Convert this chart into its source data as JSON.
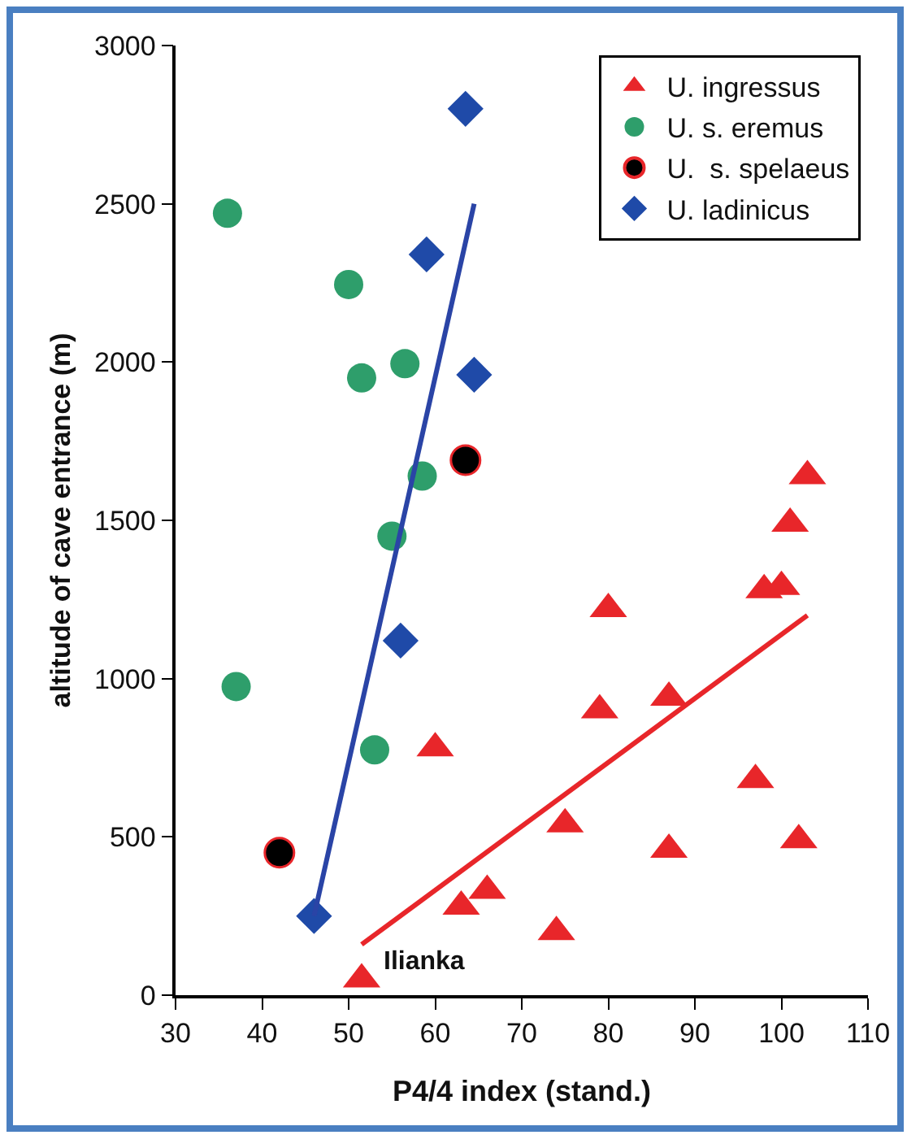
{
  "chart_data": {
    "type": "scatter",
    "xlabel": "P4/4 index (stand.)",
    "ylabel": "altitude of cave entrance (m)",
    "xlim": [
      30,
      110
    ],
    "xticks": [
      30,
      40,
      50,
      60,
      70,
      80,
      90,
      100,
      110
    ],
    "ylim": [
      0,
      3000
    ],
    "yticks": [
      0,
      500,
      1000,
      1500,
      2000,
      2500,
      3000
    ],
    "grid": false,
    "legend": "top right",
    "series": [
      {
        "name": "U. ingressus",
        "color": "#e8262a",
        "marker": "triangle",
        "x": [
          51.5,
          60,
          63,
          66,
          74,
          75,
          79,
          80,
          87,
          87,
          97,
          98,
          100,
          101,
          102,
          103
        ],
        "values": [
          50,
          780,
          280,
          330,
          200,
          540,
          900,
          1220,
          940,
          460,
          680,
          1280,
          1290,
          1490,
          490,
          1640
        ]
      },
      {
        "name": "U. s. eremus",
        "color": "#2e9e6b",
        "marker": "circle",
        "x": [
          36,
          37,
          50,
          51.5,
          56.5,
          58.5,
          55,
          53
        ],
        "values": [
          2470,
          975,
          2245,
          1950,
          1995,
          1640,
          1450,
          775
        ]
      },
      {
        "name": "U.  s. spelaeus",
        "color": "#000000",
        "marker": "circle",
        "x": [
          42,
          63.5
        ],
        "values": [
          450,
          1690
        ]
      },
      {
        "name": "U. ladinicus",
        "color": "#1f4aa8",
        "marker": "diamond",
        "x": [
          46,
          56,
          59,
          63.5,
          64.5
        ],
        "values": [
          250,
          1120,
          2340,
          2800,
          1960
        ]
      },
      {
        "type": "line",
        "color": "#2a44a6",
        "x": [
          46,
          64.5
        ],
        "values": [
          250,
          2500
        ]
      },
      {
        "type": "line",
        "color": "#e8262a",
        "x": [
          51.5,
          103
        ],
        "values": [
          160,
          1200
        ]
      }
    ],
    "annotations": [
      {
        "text": "Ilianka",
        "x": 51.5,
        "y": 50
      }
    ]
  }
}
